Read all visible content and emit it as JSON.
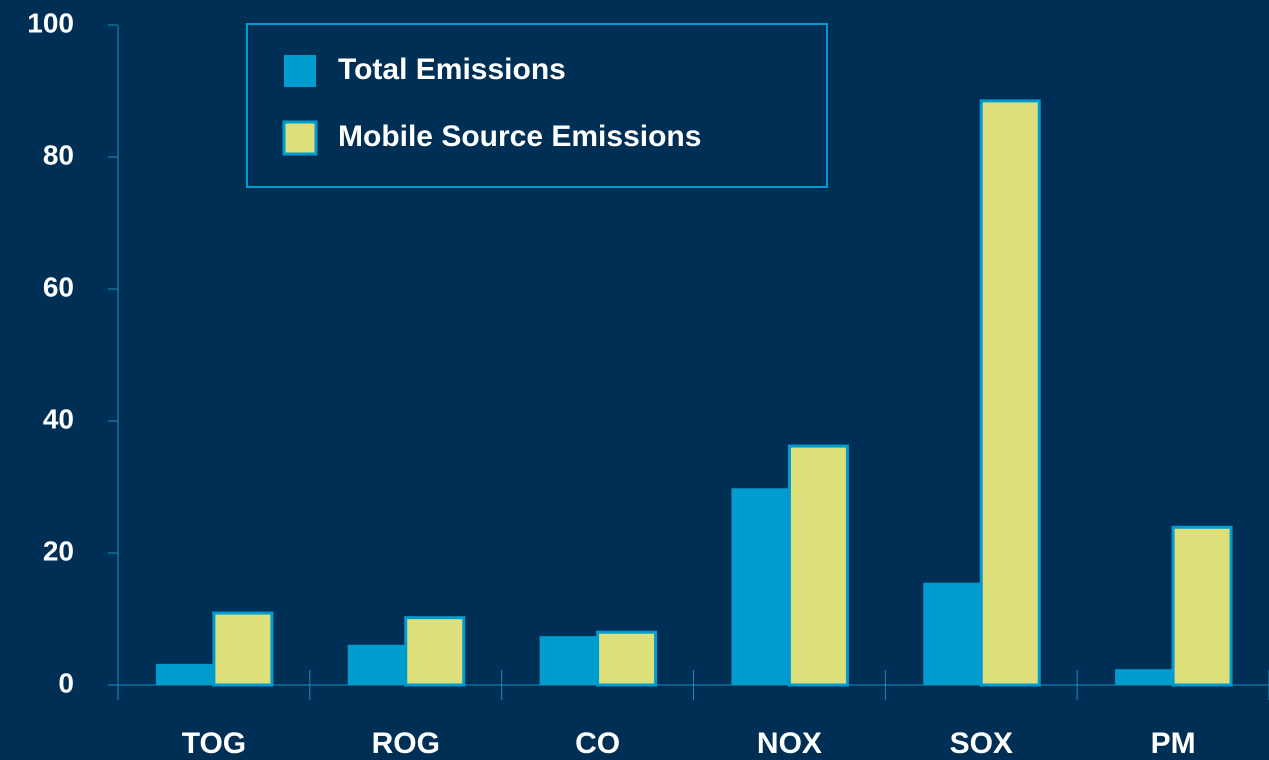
{
  "chart_data": {
    "type": "bar",
    "categories": [
      "TOG",
      "ROG",
      "CO",
      "NOX",
      "SOX",
      "PM"
    ],
    "series": [
      {
        "name": "Total Emissions",
        "color": "#009ccf",
        "values": [
          3.2,
          6.1,
          7.4,
          29.8,
          15.5,
          2.4
        ]
      },
      {
        "name": "Mobile Source Emissions",
        "color": "#dde07a",
        "values": [
          10.9,
          10.2,
          8.0,
          36.2,
          88.5,
          23.9
        ]
      }
    ],
    "ylim": [
      0,
      100
    ],
    "yticks": [
      0,
      20,
      40,
      60,
      80,
      100
    ]
  }
}
